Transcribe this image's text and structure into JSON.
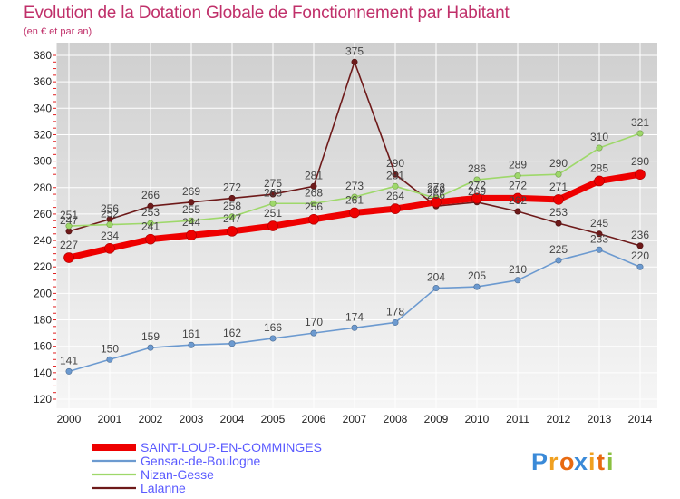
{
  "chart_data": {
    "type": "line",
    "title": "Evolution de la Dotation Globale de Fonctionnement par Habitant",
    "subtitle": "(en € et par an)",
    "xlabel": "",
    "ylabel": "",
    "x": [
      "2000",
      "2001",
      "2002",
      "2003",
      "2004",
      "2005",
      "2006",
      "2007",
      "2008",
      "2009",
      "2010",
      "2011",
      "2012",
      "2013",
      "2014"
    ],
    "ylim": [
      120,
      380
    ],
    "yticks": [
      120,
      140,
      160,
      180,
      200,
      220,
      240,
      260,
      280,
      300,
      320,
      340,
      360,
      380
    ],
    "ytick_labels": [
      "120",
      "140",
      "160",
      "180",
      "200",
      "220",
      "240",
      "260",
      "280",
      "300",
      "320",
      "340",
      "360",
      "380"
    ],
    "grid": true,
    "legend_position": "bottom-left",
    "series": [
      {
        "name": "Lalanne",
        "color": "#6e1a1a",
        "emphasis": false,
        "values": [
          247,
          256,
          266,
          269,
          272,
          275,
          281,
          375,
          290,
          266,
          269,
          262,
          253,
          245,
          236
        ],
        "labels": [
          "247",
          "256",
          "266",
          "269",
          "272",
          "275",
          "281",
          "375",
          "290",
          "266",
          "269",
          "262",
          "253",
          "245",
          "236"
        ]
      },
      {
        "name": "Nizan-Gesse",
        "color": "#9ed86a",
        "emphasis": false,
        "values": [
          251,
          252,
          253,
          255,
          258,
          268,
          268,
          273,
          281,
          272,
          286,
          289,
          290,
          310,
          321
        ],
        "labels": [
          "251",
          "252",
          "253",
          "255",
          "258",
          "268",
          "268",
          "273",
          "281",
          "272",
          "286",
          "289",
          "290",
          "310",
          "321"
        ]
      },
      {
        "name": "Gensac-de-Boulogne",
        "color": "#6c9ad0",
        "emphasis": false,
        "values": [
          141,
          150,
          159,
          161,
          162,
          166,
          170,
          174,
          178,
          204,
          205,
          210,
          225,
          233,
          220
        ],
        "labels": [
          "141",
          "150",
          "159",
          "161",
          "162",
          "166",
          "170",
          "174",
          "178",
          "204",
          "205",
          "210",
          "225",
          "233",
          "220"
        ]
      },
      {
        "name": "SAINT-LOUP-EN-COMMINGES",
        "color": "#ee0000",
        "emphasis": true,
        "values": [
          227,
          234,
          241,
          244,
          247,
          251,
          256,
          261,
          264,
          269,
          272,
          272,
          271,
          285,
          290
        ],
        "labels": [
          "227",
          "234",
          "241",
          "244",
          "247",
          "251",
          "256",
          "261",
          "264",
          "269",
          "272",
          "272",
          "271",
          "285",
          "290"
        ]
      }
    ],
    "legend_order": [
      "SAINT-LOUP-EN-COMMINGES",
      "Gensac-de-Boulogne",
      "Nizan-Gesse",
      "Lalanne"
    ],
    "legend_color": "#5a5aff"
  },
  "brand": {
    "logo_letters": [
      "P",
      "r",
      "o",
      "x",
      "i",
      "t",
      "i"
    ],
    "logo_colors": [
      "#3a8ad8",
      "#f0a020",
      "#e86a10",
      "#3a8ad8",
      "#f0a020",
      "#e86a10",
      "#8ac040"
    ]
  }
}
